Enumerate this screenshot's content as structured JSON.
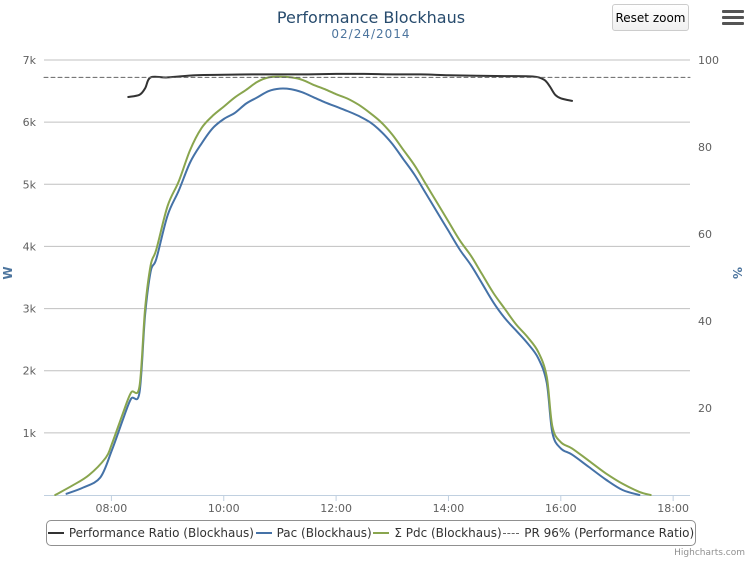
{
  "chart_data": {
    "type": "line",
    "title": "Performance Blockhaus",
    "subtitle": "02/24/2014",
    "xlabel": "",
    "ylabel_left": "W",
    "ylabel_right": "%",
    "xlim": [
      6.8,
      18.3
    ],
    "ylim_left": [
      0,
      7000
    ],
    "ylim_right": [
      0,
      100
    ],
    "x_tick_labels": [
      "08:00",
      "10:00",
      "12:00",
      "14:00",
      "16:00",
      "18:00"
    ],
    "x_ticks": [
      8,
      10,
      12,
      14,
      16,
      18
    ],
    "y_left_tick_labels": [
      "1k",
      "2k",
      "3k",
      "4k",
      "5k",
      "6k",
      "7k"
    ],
    "y_left_ticks": [
      1000,
      2000,
      3000,
      4000,
      5000,
      6000,
      7000
    ],
    "y_right_tick_labels": [
      "20",
      "40",
      "60",
      "80",
      "100"
    ],
    "y_right_ticks": [
      20,
      40,
      60,
      80,
      100
    ],
    "grid": true,
    "legend_position": "bottom",
    "series": [
      {
        "name": "Performance Ratio (Blockhaus)",
        "axis": "right",
        "color": "#333333",
        "x": [
          8.3,
          8.5,
          8.6,
          8.7,
          9.0,
          9.5,
          10.0,
          10.5,
          11.0,
          11.5,
          12.0,
          12.5,
          13.0,
          13.5,
          14.0,
          14.5,
          15.0,
          15.5,
          15.7,
          15.8,
          15.9,
          16.0,
          16.2
        ],
        "y": [
          91.5,
          92.0,
          93.5,
          96.0,
          96.0,
          96.5,
          96.6,
          96.7,
          96.7,
          96.7,
          96.8,
          96.8,
          96.7,
          96.7,
          96.5,
          96.4,
          96.3,
          96.2,
          95.5,
          94.0,
          92.0,
          91.2,
          90.6
        ]
      },
      {
        "name": "Pac (Blockhaus)",
        "axis": "left",
        "color": "#4572a7",
        "x": [
          7.2,
          7.5,
          7.8,
          8.0,
          8.2,
          8.35,
          8.5,
          8.6,
          8.7,
          8.8,
          9.0,
          9.2,
          9.4,
          9.6,
          9.8,
          10.0,
          10.2,
          10.4,
          10.6,
          10.8,
          11.0,
          11.2,
          11.4,
          11.6,
          11.8,
          12.0,
          12.2,
          12.4,
          12.6,
          12.8,
          13.0,
          13.2,
          13.4,
          13.6,
          13.8,
          14.0,
          14.2,
          14.4,
          14.6,
          14.8,
          15.0,
          15.2,
          15.4,
          15.6,
          15.75,
          15.85,
          16.0,
          16.2,
          16.5,
          16.8,
          17.1,
          17.4
        ],
        "y": [
          20,
          120,
          280,
          700,
          1200,
          1550,
          1650,
          2900,
          3600,
          3800,
          4500,
          4900,
          5350,
          5650,
          5900,
          6050,
          6150,
          6300,
          6400,
          6500,
          6540,
          6530,
          6480,
          6400,
          6320,
          6250,
          6180,
          6100,
          6000,
          5850,
          5650,
          5400,
          5150,
          4850,
          4550,
          4250,
          3950,
          3700,
          3400,
          3100,
          2850,
          2650,
          2450,
          2200,
          1800,
          1000,
          750,
          650,
          450,
          250,
          80,
          0
        ]
      },
      {
        "name": "Σ Pdc (Blockhaus)",
        "axis": "left",
        "color": "#89a54e",
        "x": [
          7.0,
          7.3,
          7.6,
          7.9,
          8.0,
          8.2,
          8.35,
          8.5,
          8.6,
          8.7,
          8.8,
          9.0,
          9.2,
          9.4,
          9.6,
          9.8,
          10.0,
          10.2,
          10.4,
          10.6,
          10.8,
          11.0,
          11.2,
          11.4,
          11.6,
          11.8,
          12.0,
          12.2,
          12.4,
          12.6,
          12.8,
          13.0,
          13.2,
          13.4,
          13.6,
          13.8,
          14.0,
          14.2,
          14.4,
          14.6,
          14.8,
          15.0,
          15.2,
          15.4,
          15.6,
          15.75,
          15.85,
          16.0,
          16.2,
          16.5,
          16.8,
          17.1,
          17.4,
          17.6
        ],
        "y": [
          0,
          150,
          320,
          600,
          800,
          1300,
          1650,
          1750,
          3000,
          3700,
          3950,
          4650,
          5050,
          5550,
          5900,
          6100,
          6250,
          6400,
          6520,
          6650,
          6720,
          6730,
          6720,
          6680,
          6600,
          6530,
          6450,
          6380,
          6280,
          6150,
          6000,
          5800,
          5550,
          5300,
          5000,
          4700,
          4400,
          4100,
          3850,
          3550,
          3250,
          3000,
          2750,
          2550,
          2300,
          1900,
          1100,
          850,
          750,
          550,
          350,
          180,
          50,
          0
        ]
      },
      {
        "name": "PR 96% (Performance Ratio)",
        "axis": "right",
        "color": "#666666",
        "dashed": true,
        "x": [
          6.8,
          18.3
        ],
        "y": [
          96,
          96
        ]
      }
    ]
  },
  "toolbar": {
    "reset_label": "Reset zoom",
    "menu_icon": "hamburger-menu-icon"
  },
  "credits": "Highcharts.com"
}
